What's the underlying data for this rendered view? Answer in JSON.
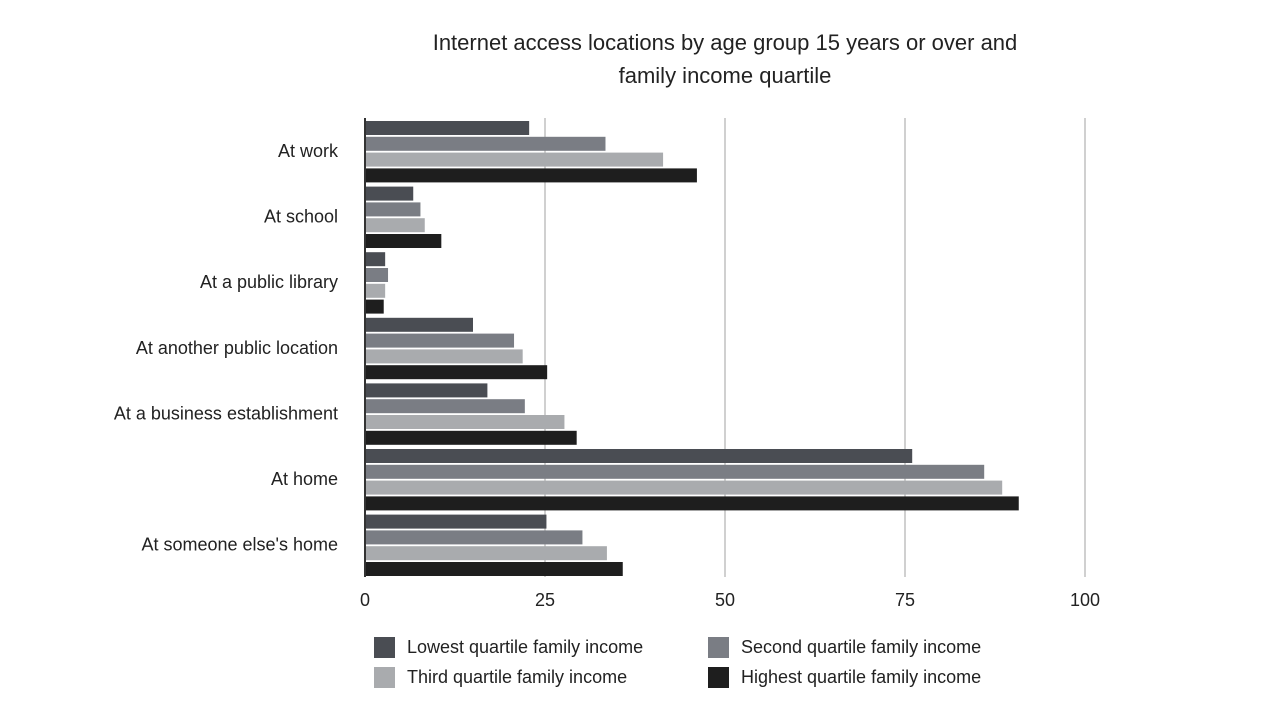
{
  "chart_data": {
    "type": "bar",
    "orientation": "horizontal",
    "title_lines": [
      "Internet access locations by age group 15 years or over and",
      "family income quartile"
    ],
    "categories": [
      "At work",
      "At school",
      "At a public library",
      "At another public location",
      "At a business establishment",
      "At home",
      "At someone else's home"
    ],
    "series": [
      {
        "name": "Lowest quartile family income",
        "color": "#4a4d53",
        "values": [
          22.8,
          6.7,
          2.8,
          15.0,
          17.0,
          76.0,
          25.2
        ]
      },
      {
        "name": "Second quartile family income",
        "color": "#7a7d84",
        "values": [
          33.4,
          7.7,
          3.2,
          20.7,
          22.2,
          86.0,
          30.2
        ]
      },
      {
        "name": "Third quartile family income",
        "color": "#a9abae",
        "values": [
          41.4,
          8.3,
          2.8,
          21.9,
          27.7,
          88.5,
          33.6
        ]
      },
      {
        "name": "Highest quartile family income",
        "color": "#1e1e1e",
        "values": [
          46.1,
          10.6,
          2.6,
          25.3,
          29.4,
          90.8,
          35.8
        ]
      }
    ],
    "xlim": [
      0,
      100
    ],
    "xticks": [
      "0",
      "25",
      "50",
      "75",
      "100"
    ],
    "xtick_values": [
      0,
      25,
      50,
      75,
      100
    ],
    "grid": "vertical",
    "legend_position": "bottom"
  }
}
